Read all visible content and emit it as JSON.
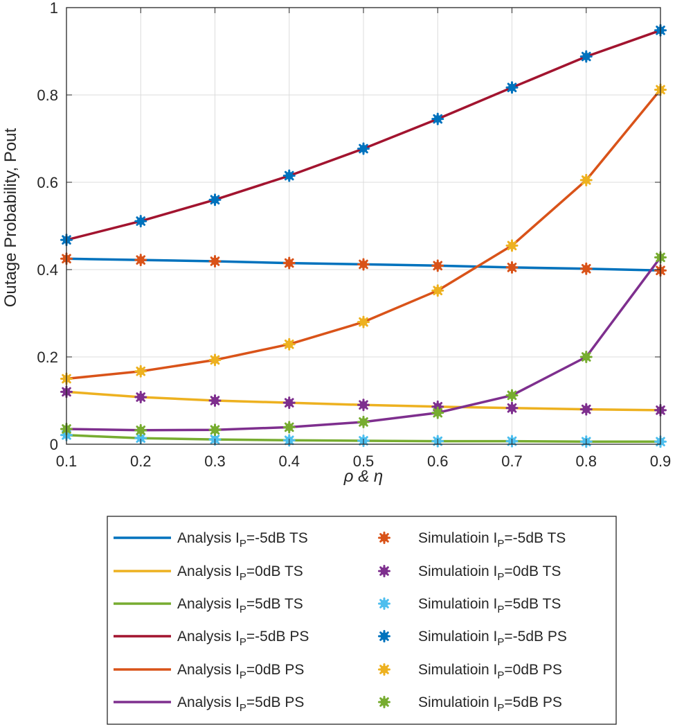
{
  "chart_data": {
    "type": "line",
    "title": "",
    "xlabel": "ρ & η",
    "ylabel": "Outage Probability, Pout",
    "xlim": [
      0.1,
      0.9
    ],
    "ylim": [
      0,
      1
    ],
    "grid": true,
    "x": [
      0.1,
      0.2,
      0.3,
      0.4,
      0.5,
      0.6,
      0.7,
      0.8,
      0.9
    ],
    "xticks": [
      "0.1",
      "0.2",
      "0.3",
      "0.4",
      "0.5",
      "0.6",
      "0.7",
      "0.8",
      "0.9"
    ],
    "yticks": [
      "0",
      "0.2",
      "0.4",
      "0.6",
      "0.8",
      "1"
    ],
    "ytick_values": [
      0,
      0.2,
      0.4,
      0.6,
      0.8,
      1
    ],
    "legend_placement": "below",
    "series": [
      {
        "name": "Analysis  IP=-5dB  TS",
        "pre": "Analysis  I",
        "sub": "P",
        "post": "=-5dB  TS",
        "kind": "line",
        "color": "#0072BD",
        "values": [
          0.425,
          0.422,
          0.419,
          0.415,
          0.412,
          0.409,
          0.405,
          0.402,
          0.398
        ]
      },
      {
        "name": "Analysis  IP=0dB  TS",
        "pre": "Analysis  I",
        "sub": "P",
        "post": "=0dB  TS",
        "kind": "line",
        "color": "#EDB120",
        "values": [
          0.12,
          0.108,
          0.1,
          0.095,
          0.09,
          0.086,
          0.083,
          0.08,
          0.078
        ]
      },
      {
        "name": "Analysis  IP=5dB  TS",
        "pre": "Analysis  I",
        "sub": "P",
        "post": "=5dB  TS",
        "kind": "line",
        "color": "#77AC30",
        "values": [
          0.021,
          0.014,
          0.011,
          0.009,
          0.008,
          0.007,
          0.007,
          0.006,
          0.006
        ]
      },
      {
        "name": "Analysis  IP=-5dB  PS",
        "pre": "Analysis  I",
        "sub": "P",
        "post": "=-5dB  PS",
        "kind": "line",
        "color": "#A2142F",
        "values": [
          0.468,
          0.511,
          0.56,
          0.615,
          0.677,
          0.745,
          0.817,
          0.888,
          0.948
        ]
      },
      {
        "name": "Analysis IP=0dB  PS",
        "pre": "Analysis I",
        "sub": "P",
        "post": "=0dB  PS",
        "kind": "line",
        "color": "#D95319",
        "values": [
          0.15,
          0.167,
          0.193,
          0.229,
          0.28,
          0.352,
          0.455,
          0.605,
          0.812
        ]
      },
      {
        "name": "Analysis  IP=5dB  PS",
        "pre": "Analysis  I",
        "sub": "P",
        "post": "=5dB  PS",
        "kind": "line",
        "color": "#7E2F8E",
        "values": [
          0.035,
          0.032,
          0.033,
          0.039,
          0.051,
          0.072,
          0.112,
          0.2,
          0.428
        ]
      },
      {
        "name": "Simulatioin  IP=-5dB  TS",
        "pre": "Simulatioin  I",
        "sub": "P",
        "post": "=-5dB  TS",
        "kind": "marker",
        "color": "#D95319",
        "values": [
          0.425,
          0.422,
          0.419,
          0.415,
          0.412,
          0.409,
          0.405,
          0.402,
          0.398
        ]
      },
      {
        "name": "Simulatioin  IP=0dB  TS",
        "pre": "Simulatioin  I",
        "sub": "P",
        "post": "=0dB  TS",
        "kind": "marker",
        "color": "#7E2F8E",
        "values": [
          0.12,
          0.108,
          0.1,
          0.095,
          0.09,
          0.086,
          0.083,
          0.08,
          0.078
        ]
      },
      {
        "name": "Simulatioin  IP=5dB  TS",
        "pre": "Simulatioin  I",
        "sub": "P",
        "post": "=5dB  TS",
        "kind": "marker",
        "color": "#4DBEEE",
        "values": [
          0.021,
          0.014,
          0.011,
          0.009,
          0.008,
          0.007,
          0.007,
          0.006,
          0.006
        ]
      },
      {
        "name": "Simulatioin  IP=-5dB  PS",
        "pre": "Simulatioin  I",
        "sub": "P",
        "post": "=-5dB  PS",
        "kind": "marker",
        "color": "#0072BD",
        "values": [
          0.468,
          0.511,
          0.56,
          0.615,
          0.677,
          0.745,
          0.817,
          0.888,
          0.948
        ]
      },
      {
        "name": "Simulatioin IP=0dB  PS",
        "pre": "Simulatioin I",
        "sub": "P",
        "post": "=0dB  PS",
        "kind": "marker",
        "color": "#EDB120",
        "values": [
          0.15,
          0.167,
          0.193,
          0.229,
          0.28,
          0.352,
          0.455,
          0.605,
          0.812
        ]
      },
      {
        "name": "Simulatioin  IP=5dB  PS",
        "pre": "Simulatioin  I",
        "sub": "P",
        "post": "=5dB  PS",
        "kind": "marker",
        "color": "#77AC30",
        "values": [
          0.035,
          0.032,
          0.033,
          0.039,
          0.051,
          0.072,
          0.112,
          0.2,
          0.428
        ]
      }
    ]
  }
}
